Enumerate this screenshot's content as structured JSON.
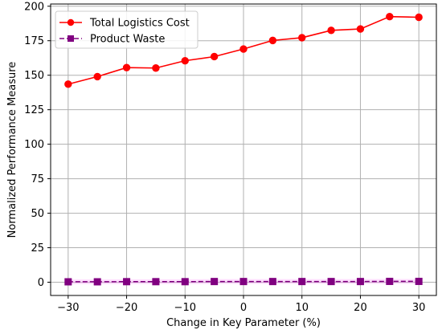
{
  "chart_data": {
    "type": "line",
    "title": "",
    "xlabel": "Change in Key Parameter (%)",
    "ylabel": "Normalized Performance Measure",
    "xlim": [
      -33,
      33
    ],
    "ylim": [
      -9.6,
      201.6
    ],
    "x_ticks": [
      -30,
      -20,
      -10,
      0,
      10,
      20,
      30
    ],
    "x_tick_labels": [
      "−30",
      "−20",
      "−10",
      "0",
      "10",
      "20",
      "30"
    ],
    "y_ticks": [
      0,
      25,
      50,
      75,
      100,
      125,
      150,
      175,
      200
    ],
    "y_tick_labels": [
      "0",
      "25",
      "50",
      "75",
      "100",
      "125",
      "150",
      "175",
      "200"
    ],
    "grid": true,
    "legend_position": "top-left",
    "x": [
      -30,
      -25,
      -20,
      -15,
      -10,
      -5,
      0,
      5,
      10,
      15,
      20,
      25,
      30
    ],
    "series": [
      {
        "name": "Total Logistics Cost",
        "color": "#ff0000",
        "marker": "circle",
        "line_style": "solid",
        "values": [
          143.5,
          149.0,
          155.5,
          155.2,
          160.5,
          163.5,
          169.0,
          175.2,
          177.2,
          182.5,
          183.5,
          192.5,
          192.0
        ]
      },
      {
        "name": "Product Waste",
        "color": "#800080",
        "band_color": "#ff7fff",
        "marker": "square",
        "line_style": "dashed",
        "values": [
          0.3,
          0.3,
          0.4,
          0.4,
          0.4,
          0.5,
          0.5,
          0.5,
          0.5,
          0.5,
          0.5,
          0.6,
          0.6
        ]
      }
    ]
  }
}
